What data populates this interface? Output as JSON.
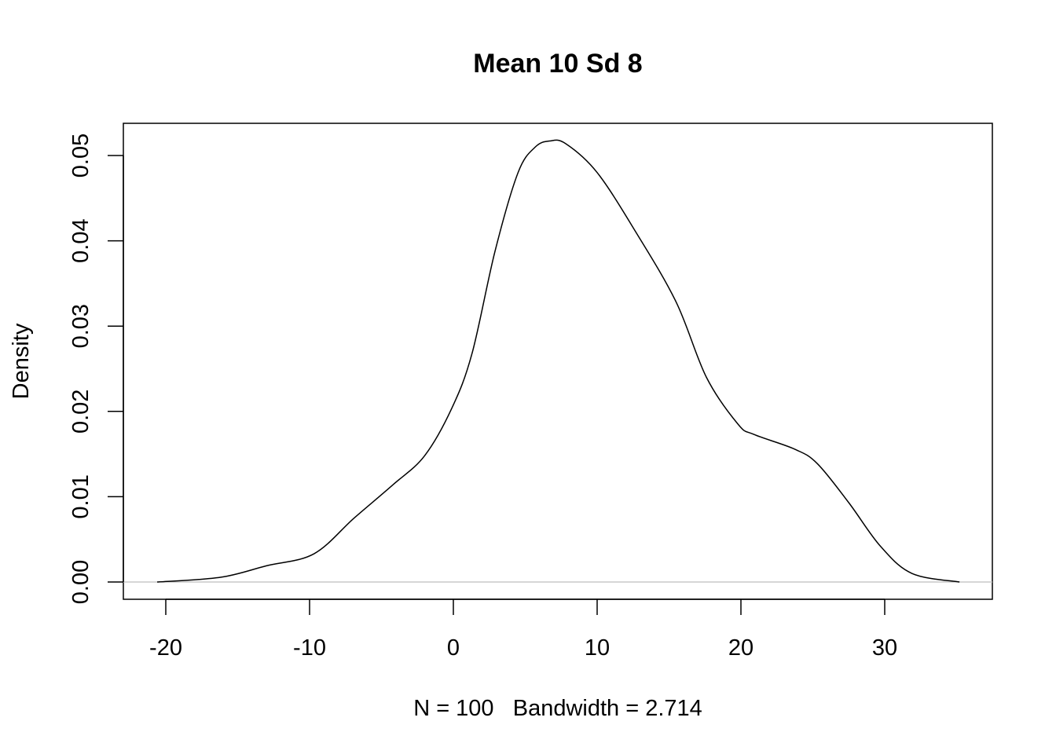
{
  "chart_data": {
    "type": "line",
    "title": "Mean 10 Sd 8",
    "xlabel": "N = 100   Bandwidth = 2.714",
    "ylabel": "Density",
    "xlim": [
      -23,
      37.5
    ],
    "ylim": [
      -0.0021,
      0.0538
    ],
    "x_ticks": [
      -20,
      -10,
      0,
      10,
      20,
      30
    ],
    "x_tick_labels": [
      "-20",
      "-10",
      "0",
      "10",
      "20",
      "30"
    ],
    "y_ticks": [
      0,
      0.01,
      0.02,
      0.03,
      0.04,
      0.05
    ],
    "y_tick_labels": [
      "0.00",
      "0.01",
      "0.02",
      "0.03",
      "0.04",
      "0.05"
    ],
    "grid": false,
    "baseline_color": "#bebebe",
    "line_color": "#000000",
    "series": [
      {
        "name": "density",
        "x": [
          -20.6,
          -16.2,
          -13.0,
          -9.7,
          -6.9,
          -4.2,
          -2.0,
          -0.1,
          1.3,
          2.9,
          4.5,
          5.7,
          6.7,
          7.8,
          10.0,
          12.7,
          15.5,
          17.6,
          19.8,
          20.9,
          23.7,
          25.3,
          27.5,
          29.7,
          31.9,
          35.2
        ],
        "y": [
          0.0,
          0.00055,
          0.0019,
          0.0033,
          0.0075,
          0.0114,
          0.0148,
          0.0204,
          0.0268,
          0.0388,
          0.048,
          0.051,
          0.0517,
          0.0514,
          0.048,
          0.041,
          0.0328,
          0.024,
          0.0185,
          0.0173,
          0.0156,
          0.0139,
          0.0093,
          0.0042,
          0.001,
          0.0
        ]
      }
    ]
  }
}
